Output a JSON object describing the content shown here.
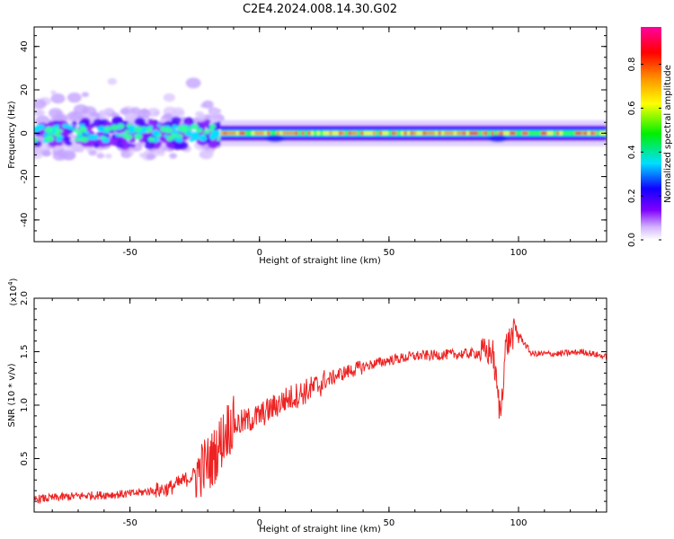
{
  "figure_title": "C2E4.2024.008.14.30.G02",
  "chart_data": [
    {
      "type": "heatmap",
      "name": "spectrogram",
      "xlabel": "Height of straight line (km)",
      "ylabel": "Frequency (Hz)",
      "xlim": [
        -87,
        134
      ],
      "ylim": [
        -50,
        49
      ],
      "xticks": [
        -50,
        0,
        50,
        100
      ],
      "yticks": [
        -40,
        -20,
        0,
        20,
        40
      ],
      "colorbar": {
        "label": "Normalized spectral amplitude",
        "range": [
          0,
          0.97
        ],
        "ticks": [
          0.0,
          0.2,
          0.4,
          0.6,
          0.8
        ],
        "colormap": "rainbow (white-violet-blue-cyan-green-yellow-orange-red-magenta)"
      },
      "regions": [
        {
          "x_range": [
            -87,
            -15
          ],
          "freq_spread_hz": [
            -15,
            20
          ],
          "amplitude": "low-to-medium, scattered blobs"
        },
        {
          "x_range": [
            -15,
            134
          ],
          "freq_spread_hz": [
            -4,
            4
          ],
          "amplitude": "high, narrow band centered at 0 Hz"
        }
      ]
    },
    {
      "type": "line",
      "name": "snr",
      "xlabel": "Height of straight line (km)",
      "ylabel": "SNR (10 * v/v)",
      "yscale_label": "(x10^4)",
      "xlim": [
        -87,
        134
      ],
      "ylim": [
        0,
        2.0
      ],
      "xticks": [
        -50,
        0,
        50,
        100
      ],
      "yticks": [
        0.5,
        1.0,
        1.5,
        2.0
      ],
      "color": "#ee2222",
      "x": [
        -87,
        -70,
        -50,
        -35,
        -25,
        -18,
        -12,
        -5,
        0,
        10,
        20,
        30,
        40,
        50,
        60,
        70,
        80,
        90,
        93,
        95,
        99,
        105,
        115,
        125,
        134
      ],
      "y": [
        0.12,
        0.15,
        0.17,
        0.22,
        0.35,
        0.5,
        0.8,
        0.85,
        0.9,
        1.05,
        1.15,
        1.28,
        1.36,
        1.42,
        1.46,
        1.47,
        1.48,
        1.5,
        0.9,
        1.55,
        1.7,
        1.48,
        1.48,
        1.5,
        1.45
      ]
    }
  ]
}
